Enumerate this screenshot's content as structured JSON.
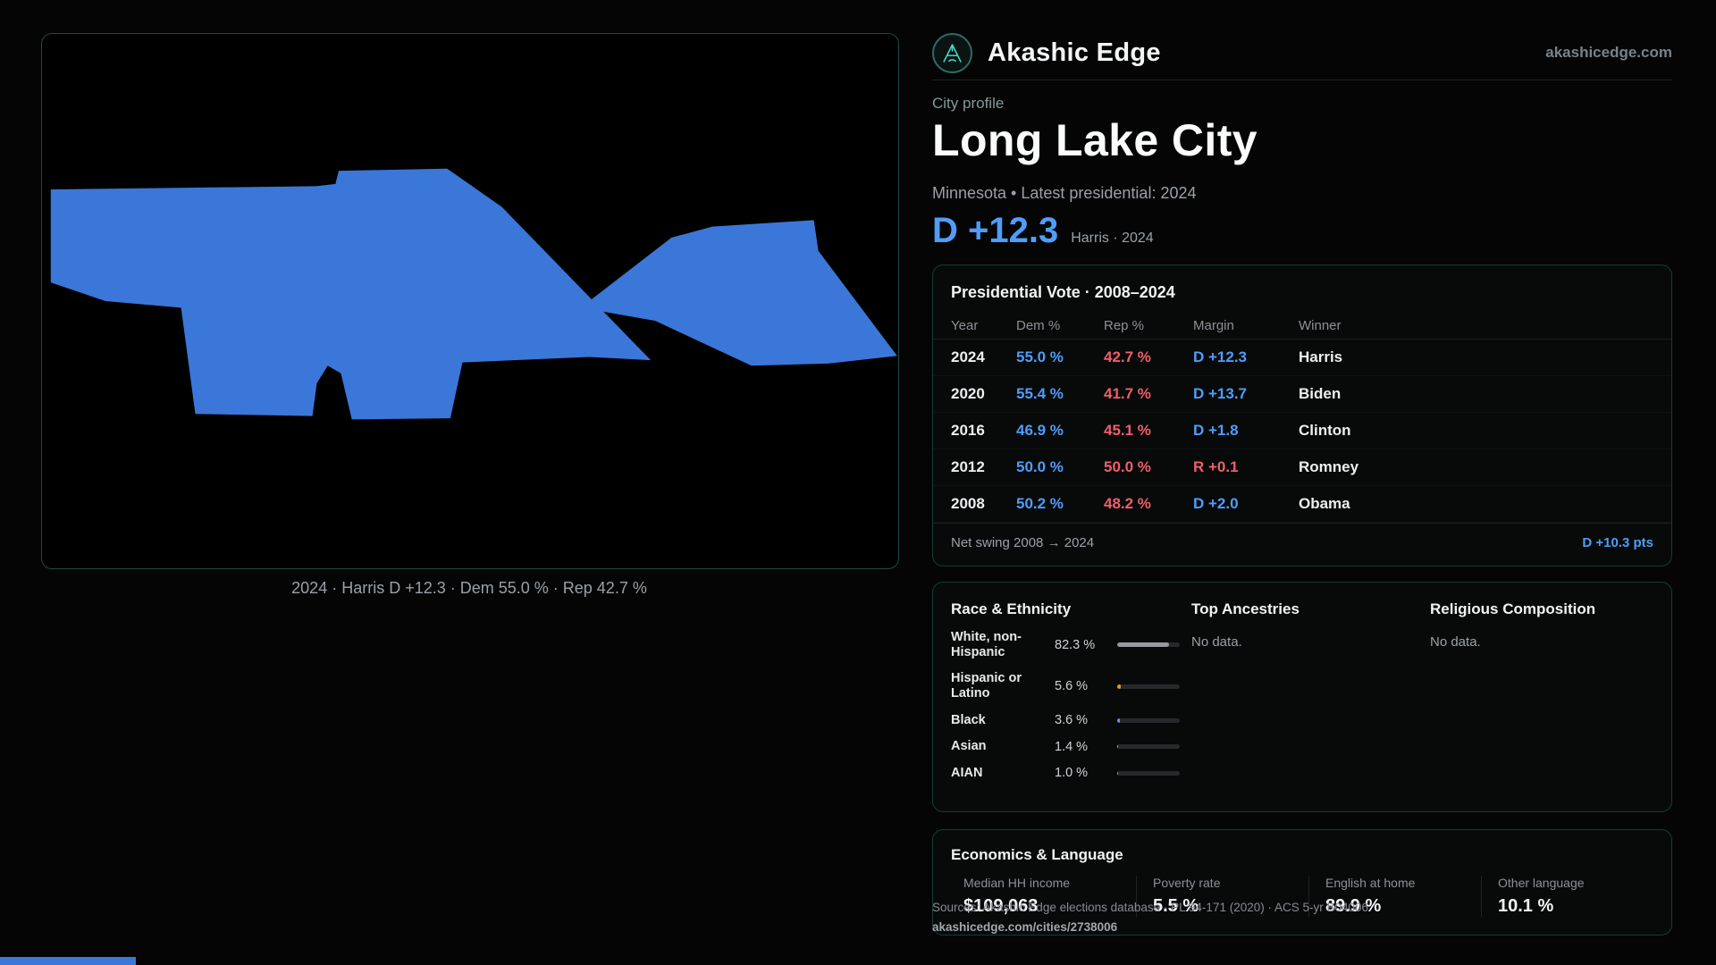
{
  "colors": {
    "dem": "#4f9df9",
    "rep": "#ef5f6a",
    "map_fill": "#3b77d8",
    "strip": "#3b77d8"
  },
  "brand": {
    "name": "Akashic Edge",
    "domain": "akashicedge.com",
    "logo_icon": "compass-icon"
  },
  "profile": {
    "kicker": "City profile",
    "title": "Long Lake City",
    "subtitle": "Minnesota • Latest presidential: 2024",
    "headline_value": "D +12.3",
    "headline_note": "Harris · 2024"
  },
  "map": {
    "caption": "2024 · Harris D +12.3 · Dem 55.0 % · Rep 42.7 %"
  },
  "presidential": {
    "title": "Presidential Vote · 2008–2024",
    "columns": {
      "year": "Year",
      "dem": "Dem %",
      "rep": "Rep %",
      "margin": "Margin",
      "winner": "Winner"
    },
    "rows": [
      {
        "year": "2024",
        "dem": "55.0 %",
        "rep": "42.7 %",
        "margin": "D +12.3",
        "party": "D",
        "winner": "Harris"
      },
      {
        "year": "2020",
        "dem": "55.4 %",
        "rep": "41.7 %",
        "margin": "D +13.7",
        "party": "D",
        "winner": "Biden"
      },
      {
        "year": "2016",
        "dem": "46.9 %",
        "rep": "45.1 %",
        "margin": "D +1.8",
        "party": "D",
        "winner": "Clinton"
      },
      {
        "year": "2012",
        "dem": "50.0 %",
        "rep": "50.0 %",
        "margin": "R +0.1",
        "party": "R",
        "winner": "Romney"
      },
      {
        "year": "2008",
        "dem": "50.2 %",
        "rep": "48.2 %",
        "margin": "D +2.0",
        "party": "D",
        "winner": "Obama"
      }
    ],
    "net_swing_label": "Net swing 2008 → 2024",
    "net_swing_value": "D +10.3 pts"
  },
  "demographics": {
    "race_title": "Race & Ethnicity",
    "races": [
      {
        "label": "White, non-Hispanic",
        "value": "82.3 %",
        "pct": 82.3,
        "color": "#949a9e"
      },
      {
        "label": "Hispanic or Latino",
        "value": "5.6 %",
        "pct": 5.6,
        "color": "#e09a3a"
      },
      {
        "label": "Black",
        "value": "3.6 %",
        "pct": 3.6,
        "color": "#7b87e8"
      },
      {
        "label": "Asian",
        "value": "1.4 %",
        "pct": 1.4,
        "color": "#35d3be"
      },
      {
        "label": "AIAN",
        "value": "1.0 %",
        "pct": 1.0,
        "color": "#949a9e"
      }
    ],
    "ancestries_title": "Top Ancestries",
    "ancestries_empty": "No data.",
    "religion_title": "Religious Composition",
    "religion_empty": "No data."
  },
  "economics": {
    "title": "Economics & Language",
    "stats": [
      {
        "label": "Median HH income",
        "value": "$109,063"
      },
      {
        "label": "Poverty rate",
        "value": "5.5 %"
      },
      {
        "label": "English at home",
        "value": "89.9 %"
      },
      {
        "label": "Other language",
        "value": "10.1 %"
      }
    ]
  },
  "footer": {
    "sources": "Sources: Akashic Edge elections database · PL 94-171 (2020) · ACS 5-yr B04006",
    "permalink": "akashicedge.com/cities/2738006"
  }
}
